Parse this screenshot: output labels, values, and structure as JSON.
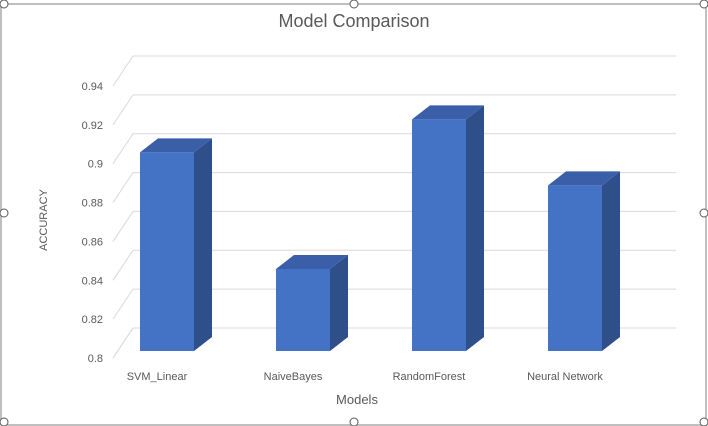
{
  "chart_data": {
    "type": "bar",
    "title": "Model Comparison",
    "xlabel": "Models",
    "ylabel": "ACCURACY",
    "categories": [
      "SVM_Linear",
      "NaiveBayes",
      "RandomForest",
      "Neural Network"
    ],
    "values": [
      0.912,
      0.852,
      0.929,
      0.895
    ],
    "ylim": [
      0.8,
      0.94
    ],
    "yticks": [
      "0.8",
      "0.82",
      "0.84",
      "0.86",
      "0.88",
      "0.9",
      "0.92",
      "0.94"
    ],
    "grid": true,
    "style": "3d-column",
    "colors": {
      "front": "#4472C4",
      "side": "#2F4F8A",
      "top": "#3A5FA8",
      "grid": "#D9D9D9",
      "text": "#595959",
      "frame": "#7F7F7F"
    }
  }
}
